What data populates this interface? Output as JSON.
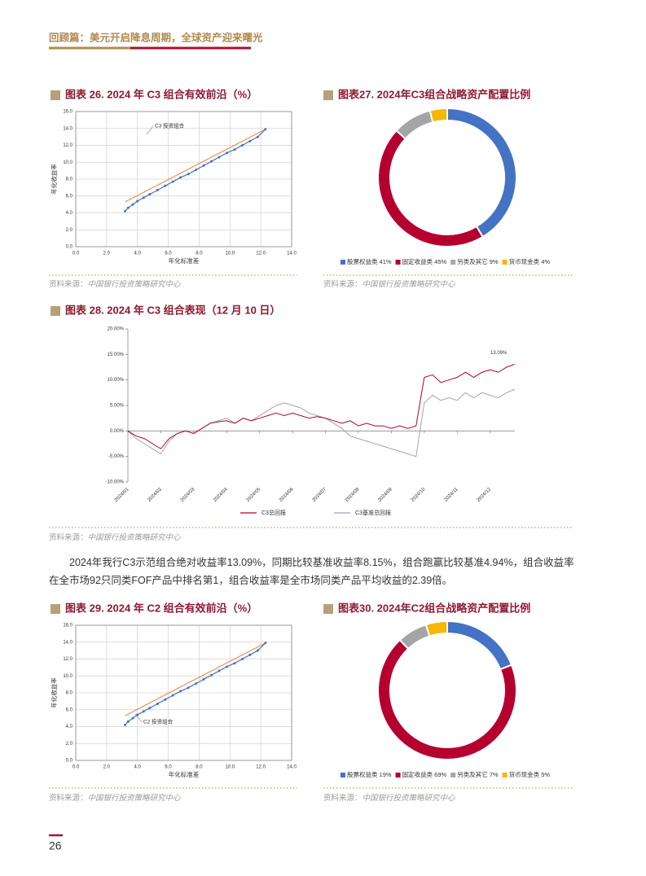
{
  "header": "回顾篇：美元开启降息周期，全球资产迎来曙光",
  "paragraph": "2024年我行C3示范组合绝对收益率13.09%，同期比较基准收益率8.15%，组合跑赢比较基准4.94%，组合收益率在全市场92只同类FOF产品中排名第1，组合收益率是全市场同类产品平均收益的2.39倍。",
  "page_number": "26",
  "chart_data": [
    {
      "type": "frontier",
      "title": "图表 26. 2024 年 C3 组合有效前沿（%）",
      "source_label": "资料来源：",
      "source": "中国银行投资策略研究中心",
      "xlabel": "年化标准差",
      "ylabel": "年化收益率",
      "annotation": "C3 投资组合",
      "grid": true,
      "xlim": [
        0,
        14
      ],
      "ylim": [
        0,
        16
      ],
      "xticks": [
        {
          "value": 0,
          "label": "0.0"
        },
        {
          "value": 2,
          "label": "2.0"
        },
        {
          "value": 4,
          "label": "4.0"
        },
        {
          "value": 6,
          "label": "6.0"
        },
        {
          "value": 8,
          "label": "8.0"
        },
        {
          "value": 10,
          "label": "10.0"
        },
        {
          "value": 12,
          "label": "12.0"
        },
        {
          "value": 14,
          "label": "14.0"
        }
      ],
      "yticks": [
        {
          "value": 0,
          "label": "0.0"
        },
        {
          "value": 2,
          "label": "2.0"
        },
        {
          "value": 4,
          "label": "4.0"
        },
        {
          "value": 6,
          "label": "6.0"
        },
        {
          "value": 8,
          "label": "8.0"
        },
        {
          "value": 10,
          "label": "10.0"
        },
        {
          "value": 12,
          "label": "12.0"
        },
        {
          "value": 14,
          "label": "14.0"
        },
        {
          "value": 16,
          "label": "16.0"
        }
      ],
      "series": [
        {
          "color": "#4472c4",
          "x": [
            3.2,
            3.4,
            3.7,
            4.0,
            4.4,
            4.8,
            5.3,
            5.8,
            6.3,
            6.8,
            7.3,
            7.8,
            8.3,
            8.8,
            9.3,
            9.8,
            10.3,
            10.8,
            11.3,
            11.8,
            12.3
          ],
          "values": [
            4.2,
            4.6,
            5.0,
            5.4,
            5.8,
            6.2,
            6.7,
            7.2,
            7.7,
            8.2,
            8.6,
            9.1,
            9.6,
            10.1,
            10.6,
            11.1,
            11.5,
            12.0,
            12.5,
            13.0,
            13.9
          ]
        },
        {
          "color": "#ed7d31",
          "x": [
            3.2,
            12.3
          ],
          "values": [
            5.3,
            13.9
          ]
        }
      ]
    },
    {
      "type": "donut",
      "title": "图表27. 2024年C3组合战略资产配置比例",
      "source_label": "资料来源：",
      "source": "中国银行投资策略研究中心",
      "categories": [
        "股票权益类",
        "固定收益类",
        "另类及其它",
        "货币现金类"
      ],
      "values": [
        41,
        45,
        9,
        4
      ],
      "value_labels": [
        "41%",
        "45%",
        "9%",
        "4%"
      ],
      "colors": [
        "#4472c4",
        "#b5002f",
        "#a5a5a5",
        "#f5b700"
      ]
    },
    {
      "type": "line",
      "title": "图表 28. 2024 年 C3 组合表现（12 月 10 日）",
      "source_label": "资料来源：",
      "source": "中国银行投资策略研究中心",
      "annotation": "13.09%",
      "ylim": [
        -10,
        20
      ],
      "yticks": [
        {
          "value": -10,
          "label": "-10.00%"
        },
        {
          "value": -5,
          "label": "-5.00%"
        },
        {
          "value": 0,
          "label": "0.00%"
        },
        {
          "value": 5,
          "label": "5.00%"
        },
        {
          "value": 10,
          "label": "10.00%"
        },
        {
          "value": 15,
          "label": "15.00%"
        },
        {
          "value": 20,
          "label": "20.00%"
        }
      ],
      "categories": [
        "2024/01",
        null,
        null,
        null,
        "2024/02",
        null,
        null,
        null,
        "2024/03",
        null,
        null,
        null,
        "2024/04",
        null,
        null,
        null,
        "2024/05",
        null,
        null,
        null,
        "2024/06",
        null,
        null,
        null,
        "2024/07",
        null,
        null,
        null,
        "2024/08",
        null,
        null,
        null,
        "2024/09",
        null,
        null,
        null,
        "2024/10",
        null,
        null,
        null,
        "2024/11",
        null,
        null,
        null,
        "2024/12",
        null,
        null,
        null
      ],
      "series": [
        {
          "name": "C3总回报",
          "color": "#b5002f",
          "values": [
            0,
            -1.0,
            -1.5,
            -2.5,
            -3.5,
            -1.5,
            -0.5,
            0,
            -0.5,
            0.5,
            1.5,
            1.8,
            2.0,
            1.5,
            2.5,
            2.0,
            2.5,
            3.0,
            3.5,
            3.0,
            3.5,
            3.0,
            2.5,
            2.8,
            2.5,
            2.0,
            1.5,
            2.0,
            1.0,
            1.5,
            1.0,
            1.0,
            0.5,
            1.0,
            0.5,
            1.0,
            10.5,
            11.0,
            9.5,
            10.0,
            10.5,
            11.5,
            10.5,
            11.5,
            12.0,
            11.5,
            12.5,
            13.09
          ]
        },
        {
          "name": "C3基准总回报",
          "color": "#a5a5a5",
          "values": [
            0,
            -1.5,
            -2.5,
            -3.5,
            -4.5,
            -2,
            -0.5,
            0,
            -0.5,
            0.5,
            1.5,
            2.0,
            2.5,
            1.5,
            2.5,
            2.0,
            3.0,
            4.0,
            5.0,
            5.5,
            5.0,
            4.5,
            3.5,
            3.0,
            2.5,
            1.5,
            0.5,
            -1.0,
            -1.5,
            -2.0,
            -2.5,
            -3.0,
            -3.5,
            -4.0,
            -4.5,
            -5.0,
            5.5,
            7.0,
            6.0,
            6.5,
            6.0,
            7.5,
            6.5,
            7.5,
            7.0,
            6.5,
            7.5,
            8.15
          ]
        }
      ]
    },
    {
      "type": "frontier",
      "title": "图表 29. 2024 年 C2 组合有效前沿（%）",
      "source_label": "资料来源：",
      "source": "中国银行投资策略研究中心",
      "xlabel": "年化标准差",
      "ylabel": "年化收益率",
      "annotation": "C2 投资组合",
      "grid": true,
      "xlim": [
        0,
        14
      ],
      "ylim": [
        0,
        16
      ],
      "xticks": [
        {
          "value": 0,
          "label": "0.0"
        },
        {
          "value": 2,
          "label": "2.0"
        },
        {
          "value": 4,
          "label": "4.0"
        },
        {
          "value": 6,
          "label": "6.0"
        },
        {
          "value": 8,
          "label": "8.0"
        },
        {
          "value": 10,
          "label": "10.0"
        },
        {
          "value": 12,
          "label": "12.0"
        },
        {
          "value": 14,
          "label": "14.0"
        }
      ],
      "yticks": [
        {
          "value": 0,
          "label": "0.0"
        },
        {
          "value": 2,
          "label": "2.0"
        },
        {
          "value": 4,
          "label": "4.0"
        },
        {
          "value": 6,
          "label": "6.0"
        },
        {
          "value": 8,
          "label": "8.0"
        },
        {
          "value": 10,
          "label": "10.0"
        },
        {
          "value": 12,
          "label": "12.0"
        },
        {
          "value": 14,
          "label": "14.0"
        },
        {
          "value": 16,
          "label": "16.0"
        }
      ],
      "series": [
        {
          "color": "#4472c4",
          "x": [
            3.2,
            3.4,
            3.7,
            4.0,
            4.4,
            4.8,
            5.3,
            5.8,
            6.3,
            6.8,
            7.3,
            7.8,
            8.3,
            8.8,
            9.3,
            9.8,
            10.3,
            10.8,
            11.3,
            11.8,
            12.3
          ],
          "values": [
            4.2,
            4.6,
            5.0,
            5.4,
            5.8,
            6.2,
            6.7,
            7.2,
            7.7,
            8.2,
            8.6,
            9.1,
            9.6,
            10.1,
            10.6,
            11.1,
            11.5,
            12.0,
            12.5,
            13.0,
            13.9
          ]
        },
        {
          "color": "#ed7d31",
          "x": [
            3.2,
            12.3
          ],
          "values": [
            5.3,
            13.9
          ]
        }
      ]
    },
    {
      "type": "donut",
      "title": "图表30. 2024年C2组合战略资产配置比例",
      "source_label": "资料来源：",
      "source": "中国银行投资策略研究中心",
      "categories": [
        "股票权益类",
        "固定收益类",
        "另类及其它",
        "货币现金类"
      ],
      "values": [
        19,
        69,
        7,
        5
      ],
      "value_labels": [
        "19%",
        "69%",
        "7%",
        "5%"
      ],
      "colors": [
        "#4472c4",
        "#b5002f",
        "#a5a5a5",
        "#f5b700"
      ]
    }
  ]
}
